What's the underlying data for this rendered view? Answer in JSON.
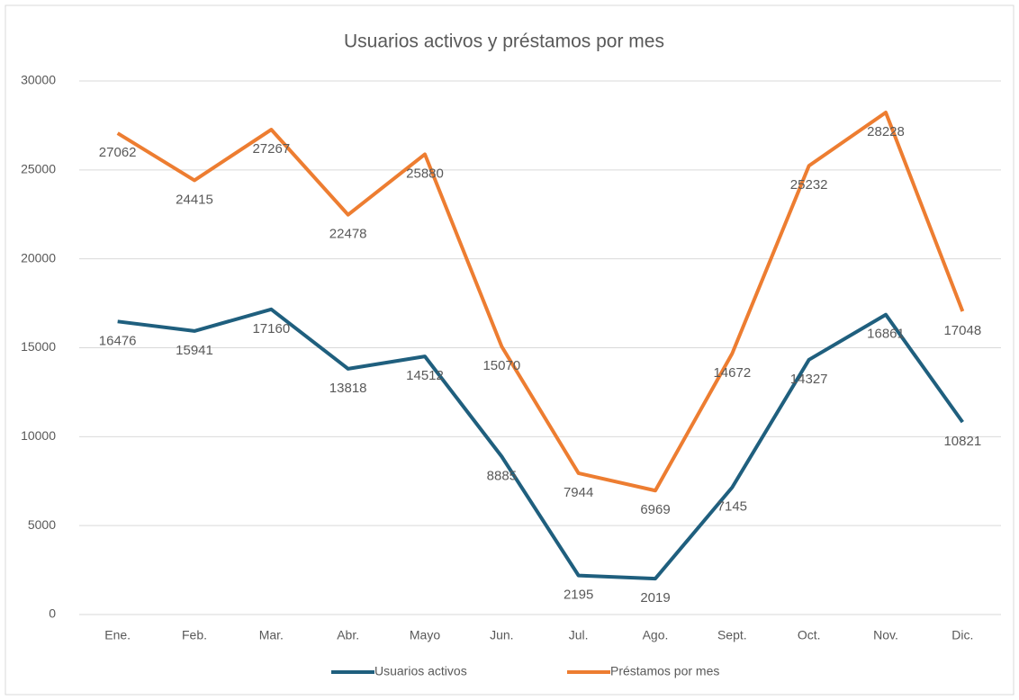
{
  "chart_data": {
    "type": "line",
    "title": "Usuarios activos y préstamos por mes",
    "categories": [
      "Ene.",
      "Feb.",
      "Mar.",
      "Abr.",
      "Mayo",
      "Jun.",
      "Jul.",
      "Ago.",
      "Sept.",
      "Oct.",
      "Nov.",
      "Dic."
    ],
    "series": [
      {
        "name": "Usuarios activos",
        "color": "#1f5f7e",
        "values": [
          16476,
          15941,
          17160,
          13818,
          14512,
          8885,
          2195,
          2019,
          7145,
          14327,
          16861,
          10821
        ]
      },
      {
        "name": "Préstamos por mes",
        "color": "#ed7d31",
        "values": [
          27062,
          24415,
          27267,
          22478,
          25880,
          15070,
          7944,
          6969,
          14672,
          25232,
          28228,
          17048
        ]
      }
    ],
    "ylim": [
      0,
      30000
    ],
    "yticks": [
      0,
      5000,
      10000,
      15000,
      20000,
      25000,
      30000
    ],
    "grid": true,
    "legend": "bottom"
  }
}
